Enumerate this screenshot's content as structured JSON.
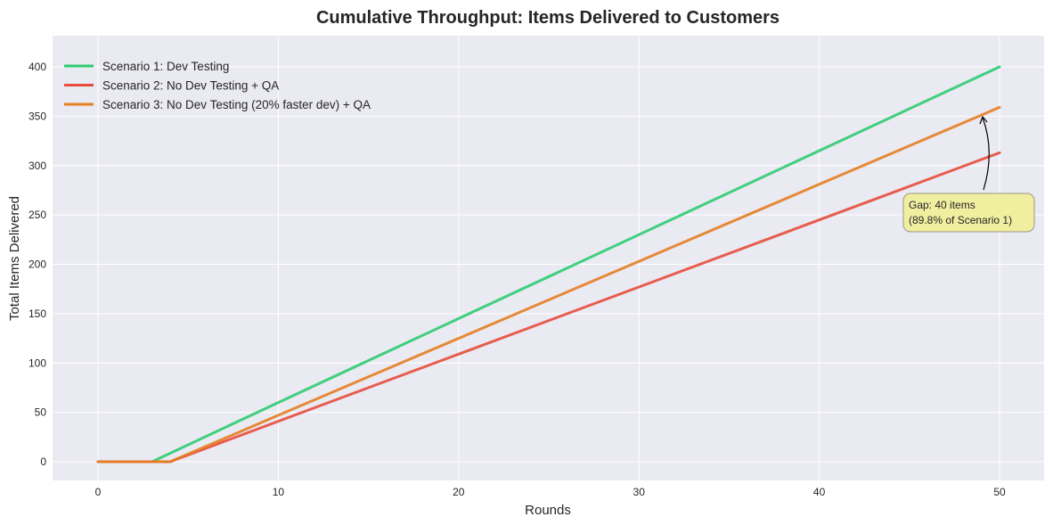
{
  "chart_data": {
    "type": "line",
    "title": "Cumulative Throughput: Items Delivered to Customers",
    "xlabel": "Rounds",
    "ylabel": "Total Items Delivered",
    "xlim": [
      -2.5,
      52.5
    ],
    "ylim": [
      -20,
      420
    ],
    "xticks": [
      0,
      10,
      20,
      30,
      40,
      50
    ],
    "yticks": [
      0,
      50,
      100,
      150,
      200,
      250,
      300,
      350,
      400
    ],
    "grid": true,
    "legend_position": "upper left",
    "series": [
      {
        "name": "Scenario 1: Dev Testing",
        "color": "#2ecc71",
        "points": [
          [
            0,
            0
          ],
          [
            3,
            0
          ],
          [
            10,
            60
          ],
          [
            20,
            145
          ],
          [
            30,
            230
          ],
          [
            40,
            315
          ],
          [
            50,
            400
          ]
        ]
      },
      {
        "name": "Scenario 2: No Dev Testing + QA",
        "color": "#e74c3c",
        "points": [
          [
            0,
            0
          ],
          [
            4,
            0
          ],
          [
            10,
            41
          ],
          [
            20,
            109
          ],
          [
            30,
            177
          ],
          [
            40,
            245
          ],
          [
            50,
            313
          ]
        ]
      },
      {
        "name": "Scenario 3: No Dev Testing (20% faster dev) + QA",
        "color": "#e67e22",
        "points": [
          [
            0,
            0
          ],
          [
            4,
            0
          ],
          [
            10,
            47
          ],
          [
            20,
            125
          ],
          [
            30,
            203
          ],
          [
            40,
            281
          ],
          [
            50,
            359
          ]
        ]
      }
    ],
    "annotations": [
      {
        "text": "Gap: 40 items\n(89.8% of Scenario 1)",
        "line1": "Gap: 40 items",
        "line2": "(89.8% of Scenario 1)",
        "xy": [
          49,
          350
        ],
        "xytext": [
          45,
          250
        ],
        "box_color": "#f0ee9f"
      }
    ]
  }
}
